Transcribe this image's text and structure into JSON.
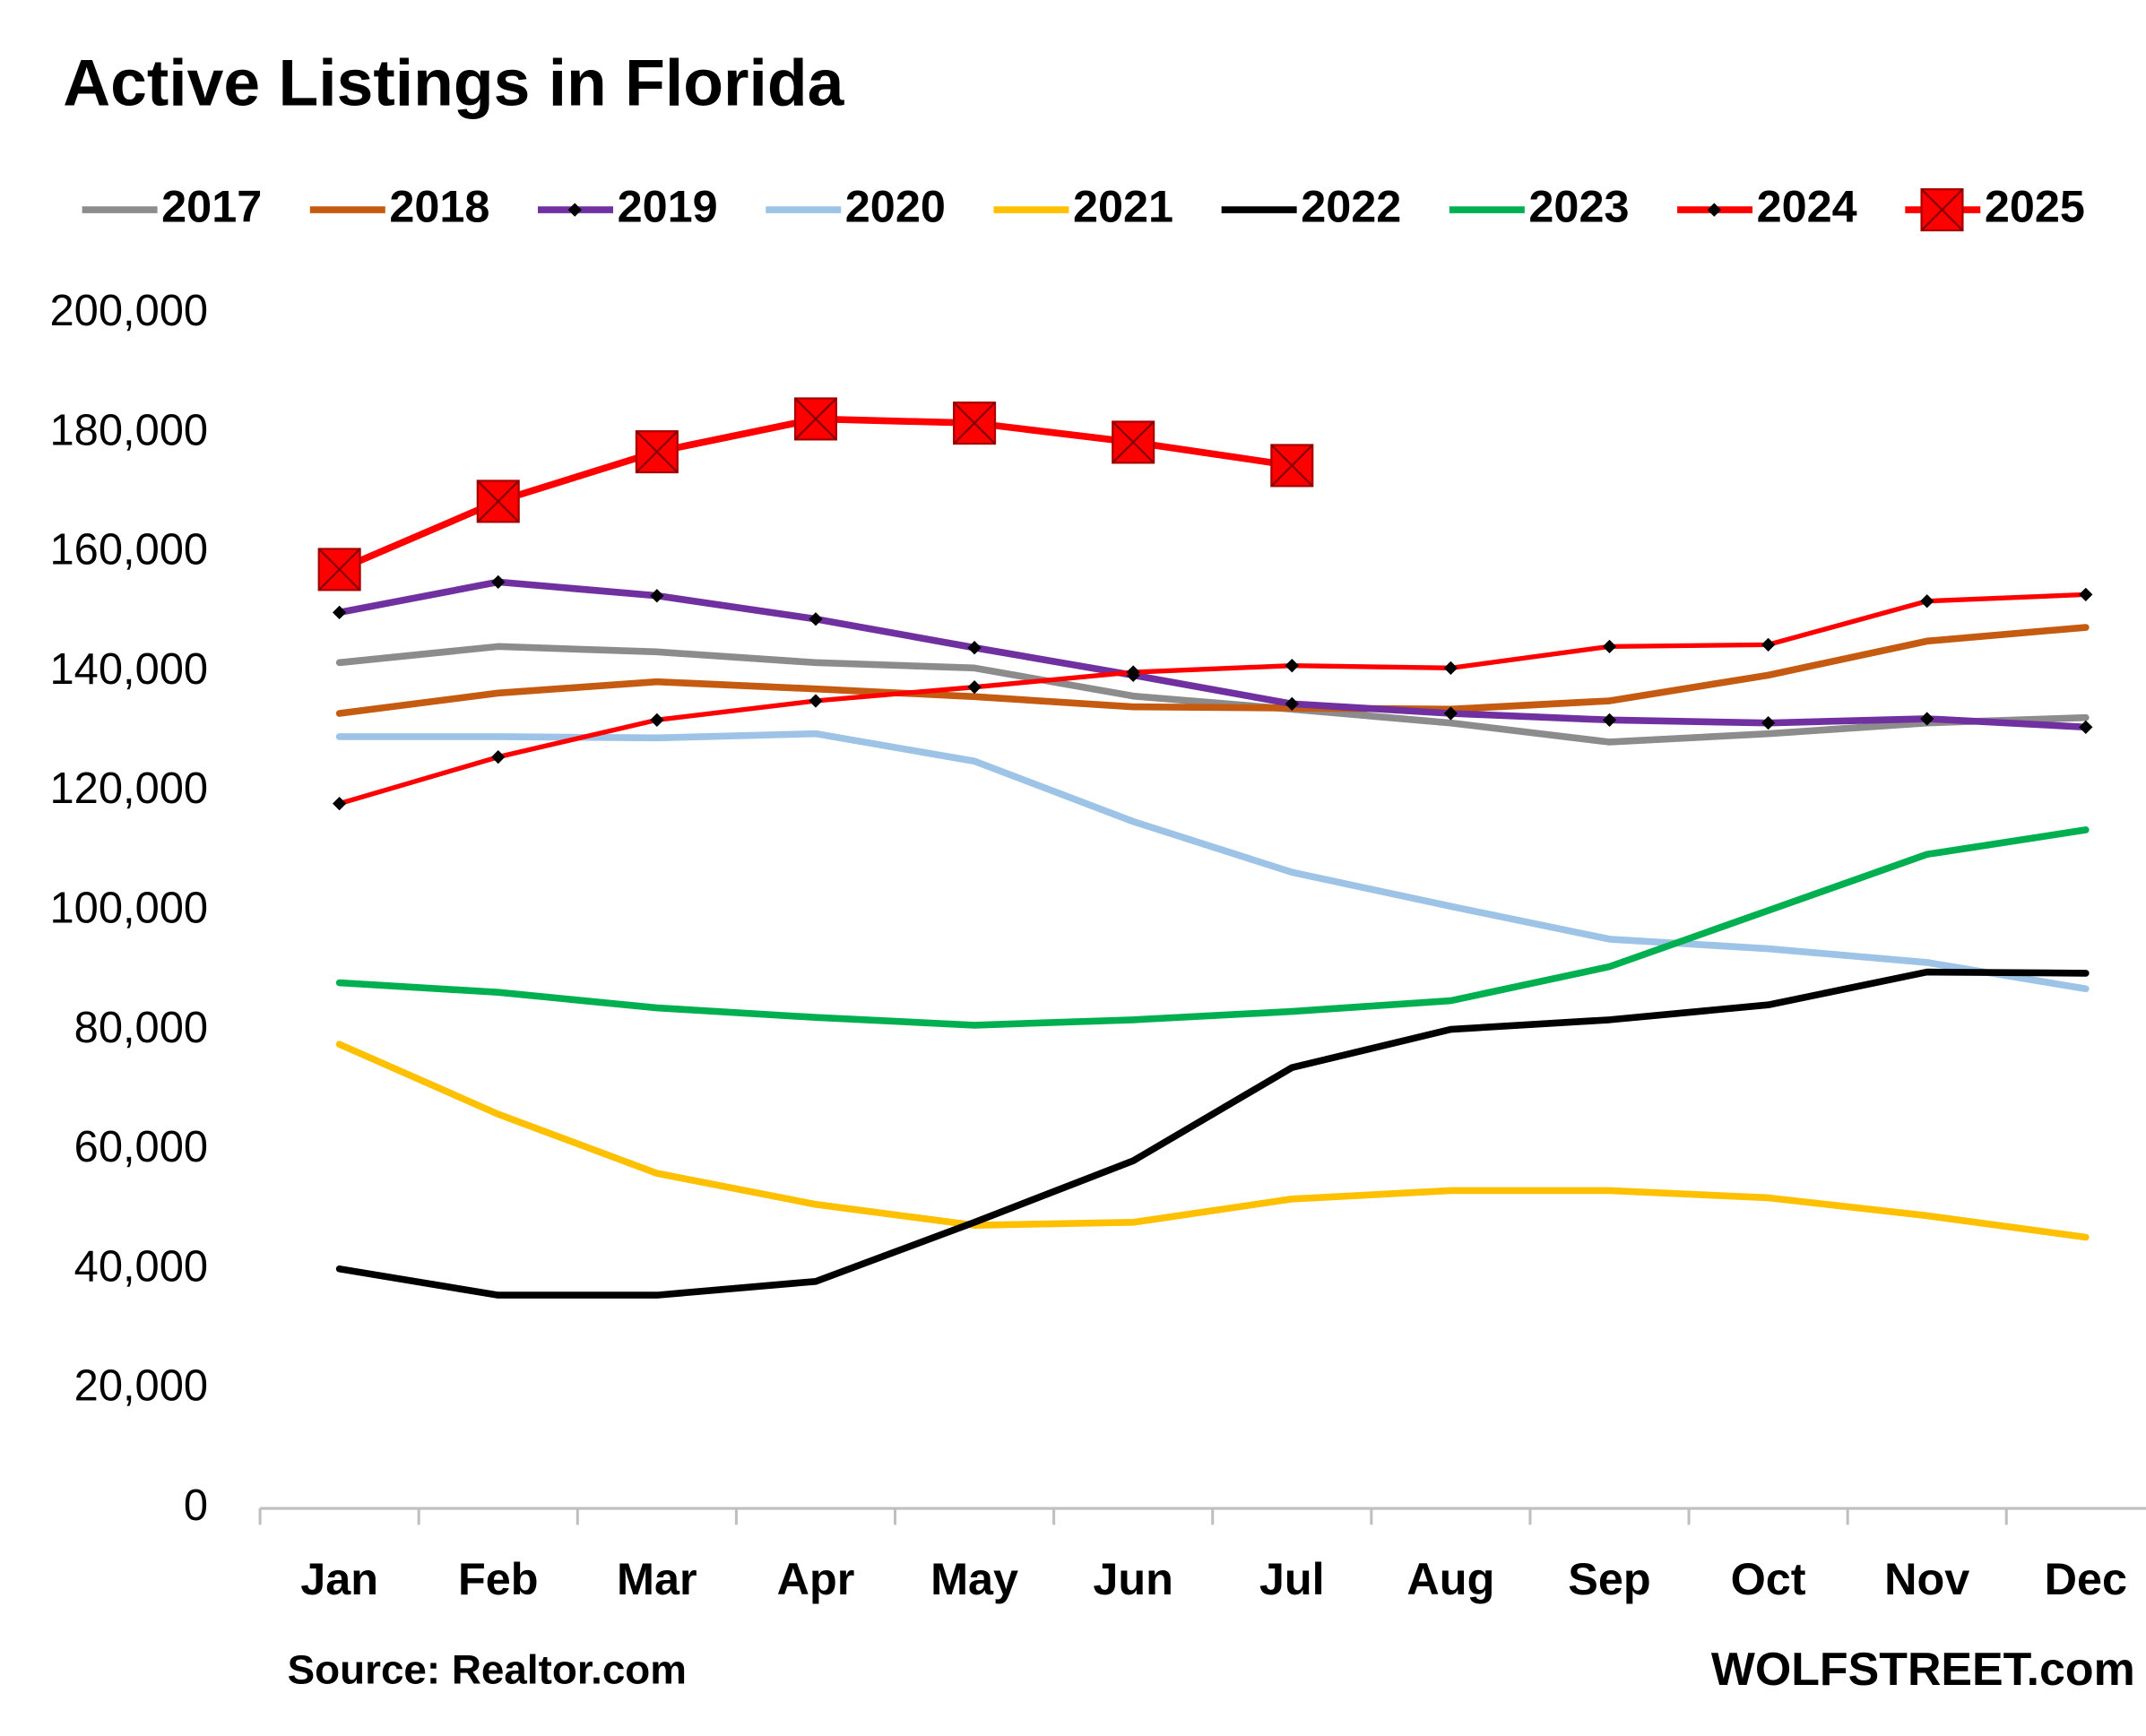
{
  "chart_data": {
    "type": "line",
    "title": "Active Listings in Florida",
    "source": "Source: Realtor.com",
    "credit": "WOLFSTREET.com",
    "categories": [
      "Jan",
      "Feb",
      "Mar",
      "Apr",
      "May",
      "Jun",
      "Jul",
      "Aug",
      "Sep",
      "Oct",
      "Nov",
      "Dec"
    ],
    "ylim": [
      0,
      200000
    ],
    "yticks": [
      0,
      {
        "value": 20000,
        "label": "20,000"
      },
      {
        "value": 40000,
        "label": "40,000"
      },
      {
        "value": 60000,
        "label": "60,000"
      },
      {
        "value": 80000,
        "label": "80,000"
      },
      {
        "value": 100000,
        "label": "100,000"
      },
      {
        "value": 120000,
        "label": "120,000"
      },
      {
        "value": 140000,
        "label": "140,000"
      },
      {
        "value": 160000,
        "label": "160,000"
      },
      {
        "value": 180000,
        "label": "180,000"
      },
      {
        "value": 200000,
        "label": "200,000"
      }
    ],
    "grid": false,
    "legend": "top",
    "series": [
      {
        "name": "2017",
        "color": "#8c8c8c",
        "values": [
          141600,
          144300,
          143400,
          141600,
          140700,
          136000,
          133800,
          131500,
          128300,
          129700,
          131500,
          132400
        ]
      },
      {
        "name": "2018",
        "color": "#c55a11",
        "values": [
          133100,
          136500,
          138400,
          137200,
          135900,
          134200,
          134000,
          133800,
          135200,
          139500,
          145200,
          147500
        ]
      },
      {
        "name": "2019",
        "color": "#7030a0",
        "marker": "diamond",
        "values": [
          150000,
          155100,
          152800,
          148900,
          144100,
          139500,
          134700,
          133100,
          132000,
          131500,
          132200,
          130800
        ]
      },
      {
        "name": "2020",
        "color": "#9dc3e6",
        "values": [
          129200,
          129200,
          129000,
          129700,
          125100,
          115000,
          106500,
          100800,
          95300,
          93700,
          91400,
          87000
        ]
      },
      {
        "name": "2021",
        "color": "#ffc000",
        "values": [
          77700,
          66000,
          56100,
          50900,
          47400,
          47900,
          51800,
          53200,
          53200,
          52000,
          49000,
          45400
        ]
      },
      {
        "name": "2022",
        "color": "#000000",
        "values": [
          40100,
          35700,
          35700,
          38000,
          47900,
          58200,
          73800,
          80200,
          81800,
          84300,
          89800,
          89600
        ]
      },
      {
        "name": "2023",
        "color": "#00b050",
        "values": [
          88000,
          86400,
          83800,
          82200,
          80900,
          81800,
          83200,
          85000,
          90700,
          100100,
          109500,
          113600
        ]
      },
      {
        "name": "2024",
        "color": "#ff0000",
        "marker": "diamond",
        "values": [
          118000,
          125800,
          132000,
          135200,
          137500,
          140000,
          141100,
          140700,
          144300,
          144600,
          151900,
          153000
        ]
      },
      {
        "name": "2025",
        "color": "#ff0000",
        "marker": "square",
        "values": [
          157200,
          168600,
          176900,
          182400,
          181700,
          178500,
          174600,
          null,
          null,
          null,
          null,
          null
        ]
      }
    ]
  }
}
